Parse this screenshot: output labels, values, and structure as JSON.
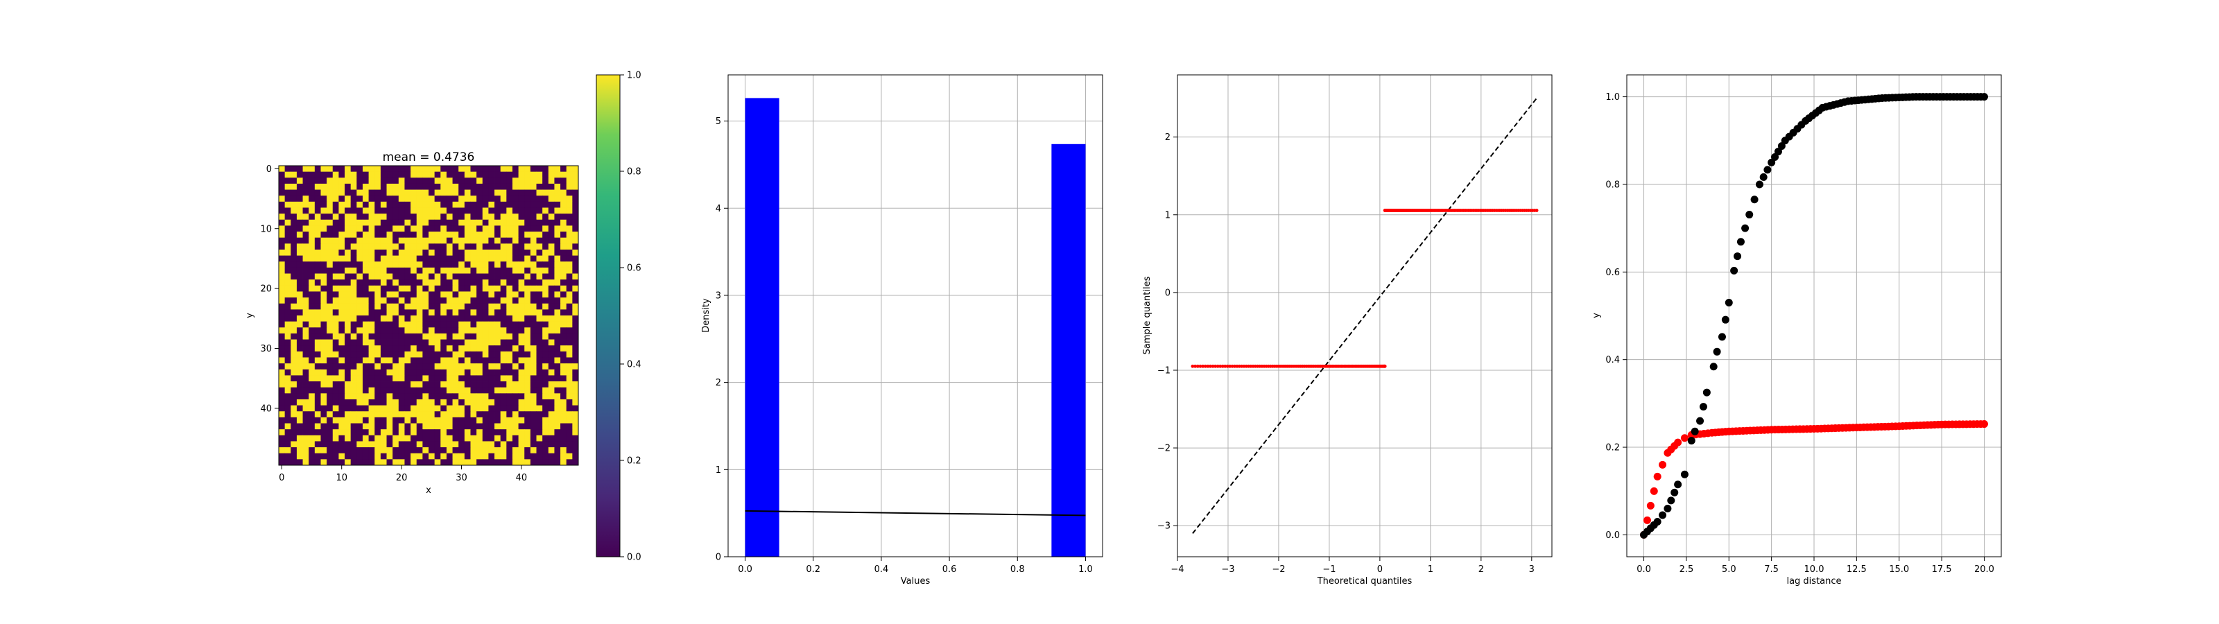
{
  "chart_data": [
    {
      "type": "heatmap",
      "title": "mean = 0.4736",
      "xlabel": "x",
      "ylabel": "y",
      "grid_size": [
        50,
        50
      ],
      "xlim": [
        -0.5,
        49.5
      ],
      "ylim": [
        49.5,
        -0.5
      ],
      "xticks": [
        0,
        10,
        20,
        30,
        40
      ],
      "yticks": [
        0,
        10,
        20,
        30,
        40
      ],
      "colormap": "viridis",
      "colors": {
        "low": "#440154",
        "high": "#fde725"
      },
      "mean": 0.4736,
      "seed": 4736,
      "colorbar": {
        "range": [
          0.0,
          1.0
        ],
        "ticks": [
          "0.0",
          "0.2",
          "0.4",
          "0.6",
          "0.8",
          "1.0"
        ]
      }
    },
    {
      "type": "bar",
      "title": "",
      "xlabel": "Values",
      "ylabel": "Density",
      "grid": true,
      "xlim": [
        -0.05,
        1.05
      ],
      "ylim": [
        0,
        5.53
      ],
      "xticks": [
        "0.0",
        "0.2",
        "0.4",
        "0.6",
        "0.8",
        "1.0"
      ],
      "yticks": [
        "0",
        "1",
        "2",
        "3",
        "4",
        "5"
      ],
      "bars": [
        {
          "x0": 0.0,
          "x1": 0.1,
          "value": 5.264
        },
        {
          "x0": 0.9,
          "x1": 1.0,
          "value": 4.736
        }
      ],
      "bar_color": "#0000ff",
      "line": {
        "x": [
          0.0,
          1.0
        ],
        "y": [
          0.526,
          0.474
        ],
        "color": "#000000"
      }
    },
    {
      "type": "scatter",
      "title": "",
      "xlabel": "Theoretical quantiles",
      "ylabel": "Sample quantiles",
      "grid": true,
      "xlim": [
        -4.0,
        3.4
      ],
      "ylim": [
        -3.4,
        2.8
      ],
      "xticks": [
        "−4",
        "−3",
        "−2",
        "−1",
        "0",
        "1",
        "2",
        "3"
      ],
      "yticks": [
        "−3",
        "−2",
        "−1",
        "0",
        "1",
        "2"
      ],
      "point_color": "#ff0000",
      "groups": [
        {
          "y": -0.949,
          "x_from": -3.7,
          "x_to": 0.1
        },
        {
          "y": 1.056,
          "x_from": 0.1,
          "x_to": 3.1
        }
      ],
      "reference_line": {
        "x": [
          -3.7,
          3.1
        ],
        "y": [
          -3.1,
          2.5
        ],
        "style": "dashed",
        "color": "#000000"
      }
    },
    {
      "type": "scatter",
      "title": "",
      "xlabel": "lag distance",
      "ylabel": "y",
      "grid": true,
      "xlim": [
        -1.0,
        21.0
      ],
      "ylim": [
        -0.05,
        1.05
      ],
      "xticks": [
        "0.0",
        "2.5",
        "5.0",
        "7.5",
        "10.0",
        "12.5",
        "15.0",
        "17.5",
        "20.0"
      ],
      "yticks": [
        "0.0",
        "0.2",
        "0.4",
        "0.6",
        "0.8",
        "1.0"
      ],
      "series": [
        {
          "color": "#ff0000",
          "points": [
            [
              0.0,
              0.0
            ],
            [
              0.8,
              0.133
            ],
            [
              1.4,
              0.187
            ],
            [
              2.0,
              0.211
            ],
            [
              2.4,
              0.221
            ],
            [
              2.8,
              0.228
            ],
            [
              3.3,
              0.23
            ],
            [
              4.0,
              0.233
            ],
            [
              5.0,
              0.236
            ],
            [
              7.5,
              0.24
            ],
            [
              10.0,
              0.242
            ],
            [
              12.5,
              0.245
            ],
            [
              15.0,
              0.248
            ],
            [
              17.5,
              0.252
            ],
            [
              20.0,
              0.253
            ]
          ]
        },
        {
          "color": "#000000",
          "points": [
            [
              0.0,
              0.0
            ],
            [
              0.8,
              0.03
            ],
            [
              1.4,
              0.06
            ],
            [
              2.0,
              0.115
            ],
            [
              2.4,
              0.138
            ],
            [
              2.8,
              0.215
            ],
            [
              3.0,
              0.236
            ],
            [
              3.3,
              0.26
            ],
            [
              3.7,
              0.325
            ],
            [
              4.1,
              0.384
            ],
            [
              4.3,
              0.418
            ],
            [
              4.6,
              0.452
            ],
            [
              5.0,
              0.53
            ],
            [
              5.3,
              0.603
            ],
            [
              5.7,
              0.669
            ],
            [
              6.2,
              0.731
            ],
            [
              6.8,
              0.8
            ],
            [
              7.5,
              0.85
            ],
            [
              8.3,
              0.9
            ],
            [
              9.5,
              0.945
            ],
            [
              10.5,
              0.975
            ],
            [
              12.0,
              0.99
            ],
            [
              14.0,
              0.997
            ],
            [
              16.0,
              1.0
            ],
            [
              18.0,
              1.0
            ],
            [
              20.0,
              1.0
            ]
          ]
        }
      ]
    }
  ]
}
